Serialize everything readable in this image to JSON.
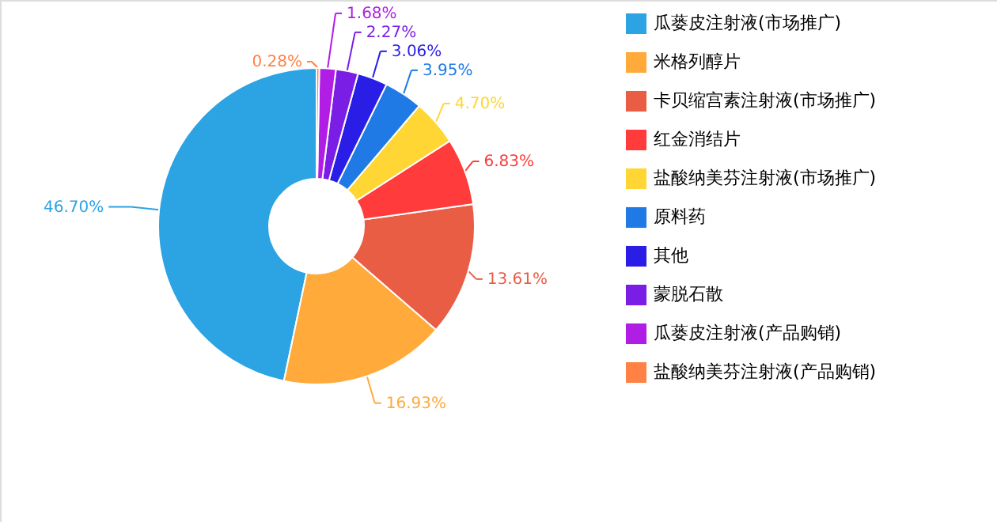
{
  "chart_data": {
    "type": "donut",
    "categories": [
      "瓜蒌皮注射液(市场推广)",
      "米格列醇片",
      "卡贝缩宫素注射液(市场推广)",
      "红金消结片",
      "盐酸纳美芬注射液(市场推广)",
      "原料药",
      "其他",
      "蒙脱石散",
      "瓜蒌皮注射液(产品购销)",
      "盐酸纳美芬注射液(产品购销)"
    ],
    "values": [
      46.7,
      16.93,
      13.61,
      6.83,
      4.7,
      3.95,
      3.06,
      2.27,
      1.68,
      0.28
    ],
    "value_labels": [
      "46.70%",
      "16.93%",
      "13.61%",
      "6.83%",
      "4.70%",
      "3.95%",
      "3.06%",
      "2.27%",
      "1.68%",
      "0.28%"
    ],
    "colors": [
      "#2ca3e3",
      "#ffaa3b",
      "#e95d45",
      "#ff3b3b",
      "#ffd633",
      "#1f7ae6",
      "#2a1ee6",
      "#7a1ee6",
      "#b01ee6",
      "#ff8244"
    ],
    "legend": "right"
  }
}
